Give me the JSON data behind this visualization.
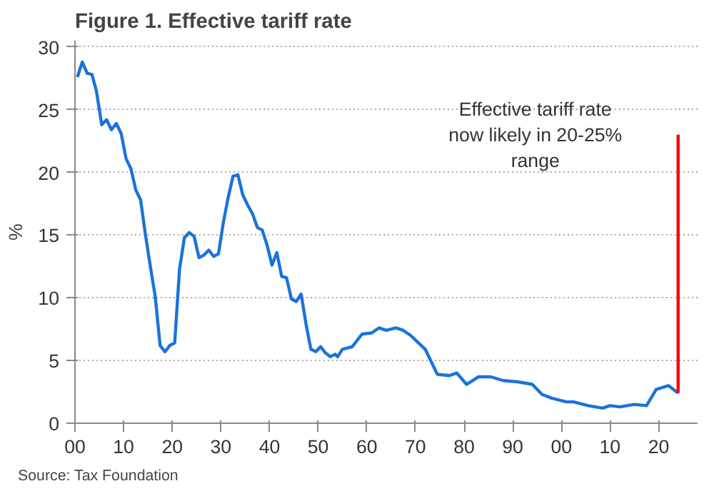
{
  "chart_data": {
    "type": "line",
    "title": "Figure 1. Effective tariff rate",
    "ylabel": "%",
    "series": [
      {
        "color": "#1a73d9",
        "x": [
          1900.5,
          1901.5,
          1902.5,
          1903.5,
          1904.4,
          1905.5,
          1906.5,
          1907.5,
          1908.5,
          1909.5,
          1910.5,
          1911.5,
          1912.5,
          1913.5,
          1914.5,
          1915.5,
          1916.5,
          1917.5,
          1918.5,
          1919.5,
          1920.5,
          1921.5,
          1922.5,
          1923.5,
          1924.5,
          1925.5,
          1926.5,
          1927.5,
          1928.5,
          1929.5,
          1930.5,
          1931.5,
          1932.5,
          1933.5,
          1934.5,
          1935.5,
          1936.5,
          1937.5,
          1938.5,
          1939.5,
          1940.5,
          1941.5,
          1942.5,
          1943.5,
          1944.5,
          1945.5,
          1946.5,
          1947.5,
          1948.5,
          1949.5,
          1950.5,
          1951.5,
          1952.5,
          1953.5,
          1954,
          1955,
          1957,
          1959,
          1961,
          1962.5,
          1964,
          1966,
          1967.5,
          1969,
          1972,
          1973,
          1974.5,
          1977,
          1978.5,
          1980.5,
          1983,
          1985.5,
          1988,
          1991,
          1994,
          1996,
          1998,
          2001,
          2002.5,
          2005.5,
          2008.5,
          2010,
          2012,
          2015,
          2017.5,
          2019.5,
          2022,
          2024
        ],
        "values": [
          27.6,
          28.8,
          27.9,
          27.8,
          26.5,
          23.8,
          24.2,
          23.4,
          23.9,
          23.1,
          21.1,
          20.3,
          18.6,
          17.8,
          15.0,
          12.5,
          10.1,
          6.2,
          5.7,
          6.2,
          6.4,
          12.3,
          14.8,
          15.2,
          14.9,
          13.2,
          13.4,
          13.8,
          13.3,
          13.5,
          16.0,
          18.0,
          19.7,
          19.8,
          18.2,
          17.4,
          16.7,
          15.6,
          15.4,
          14.2,
          12.6,
          13.6,
          11.7,
          11.6,
          9.9,
          9.7,
          10.3,
          7.9,
          5.9,
          5.7,
          6.1,
          5.6,
          5.3,
          5.5,
          5.3,
          5.9,
          6.1,
          7.1,
          7.2,
          7.6,
          7.4,
          7.6,
          7.4,
          7.0,
          5.9,
          5.1,
          3.9,
          3.8,
          4.0,
          3.1,
          3.7,
          3.7,
          3.4,
          3.3,
          3.1,
          2.3,
          2.0,
          1.7,
          1.7,
          1.4,
          1.2,
          1.4,
          1.3,
          1.5,
          1.4,
          2.7,
          3.0,
          2.4
        ]
      },
      {
        "color": "#ff0000",
        "x": [
          2024,
          2024
        ],
        "values": [
          2.4,
          23
        ]
      }
    ],
    "xlim": [
      1900,
      2028
    ],
    "ylim": [
      0,
      30.5
    ],
    "xticks": [
      {
        "value": 1900,
        "label": "00"
      },
      {
        "value": 1910,
        "label": "10"
      },
      {
        "value": 1920,
        "label": "20"
      },
      {
        "value": 1930,
        "label": "30"
      },
      {
        "value": 1940,
        "label": "40"
      },
      {
        "value": 1950,
        "label": "50"
      },
      {
        "value": 1960,
        "label": "60"
      },
      {
        "value": 1970,
        "label": "70"
      },
      {
        "value": 1980,
        "label": "80"
      },
      {
        "value": 1990,
        "label": "90"
      },
      {
        "value": 2000,
        "label": "00"
      },
      {
        "value": 2010,
        "label": "10"
      },
      {
        "value": 2020,
        "label": "20"
      }
    ],
    "yticks": [
      0,
      5,
      10,
      15,
      20,
      25,
      30
    ],
    "grid": "y",
    "annotations": [
      {
        "text": "Effective tariff rate\nnow likely in 20-25%\nrange",
        "x": 2024,
        "y": 23
      },
      "Source: Tax Foundation"
    ]
  }
}
